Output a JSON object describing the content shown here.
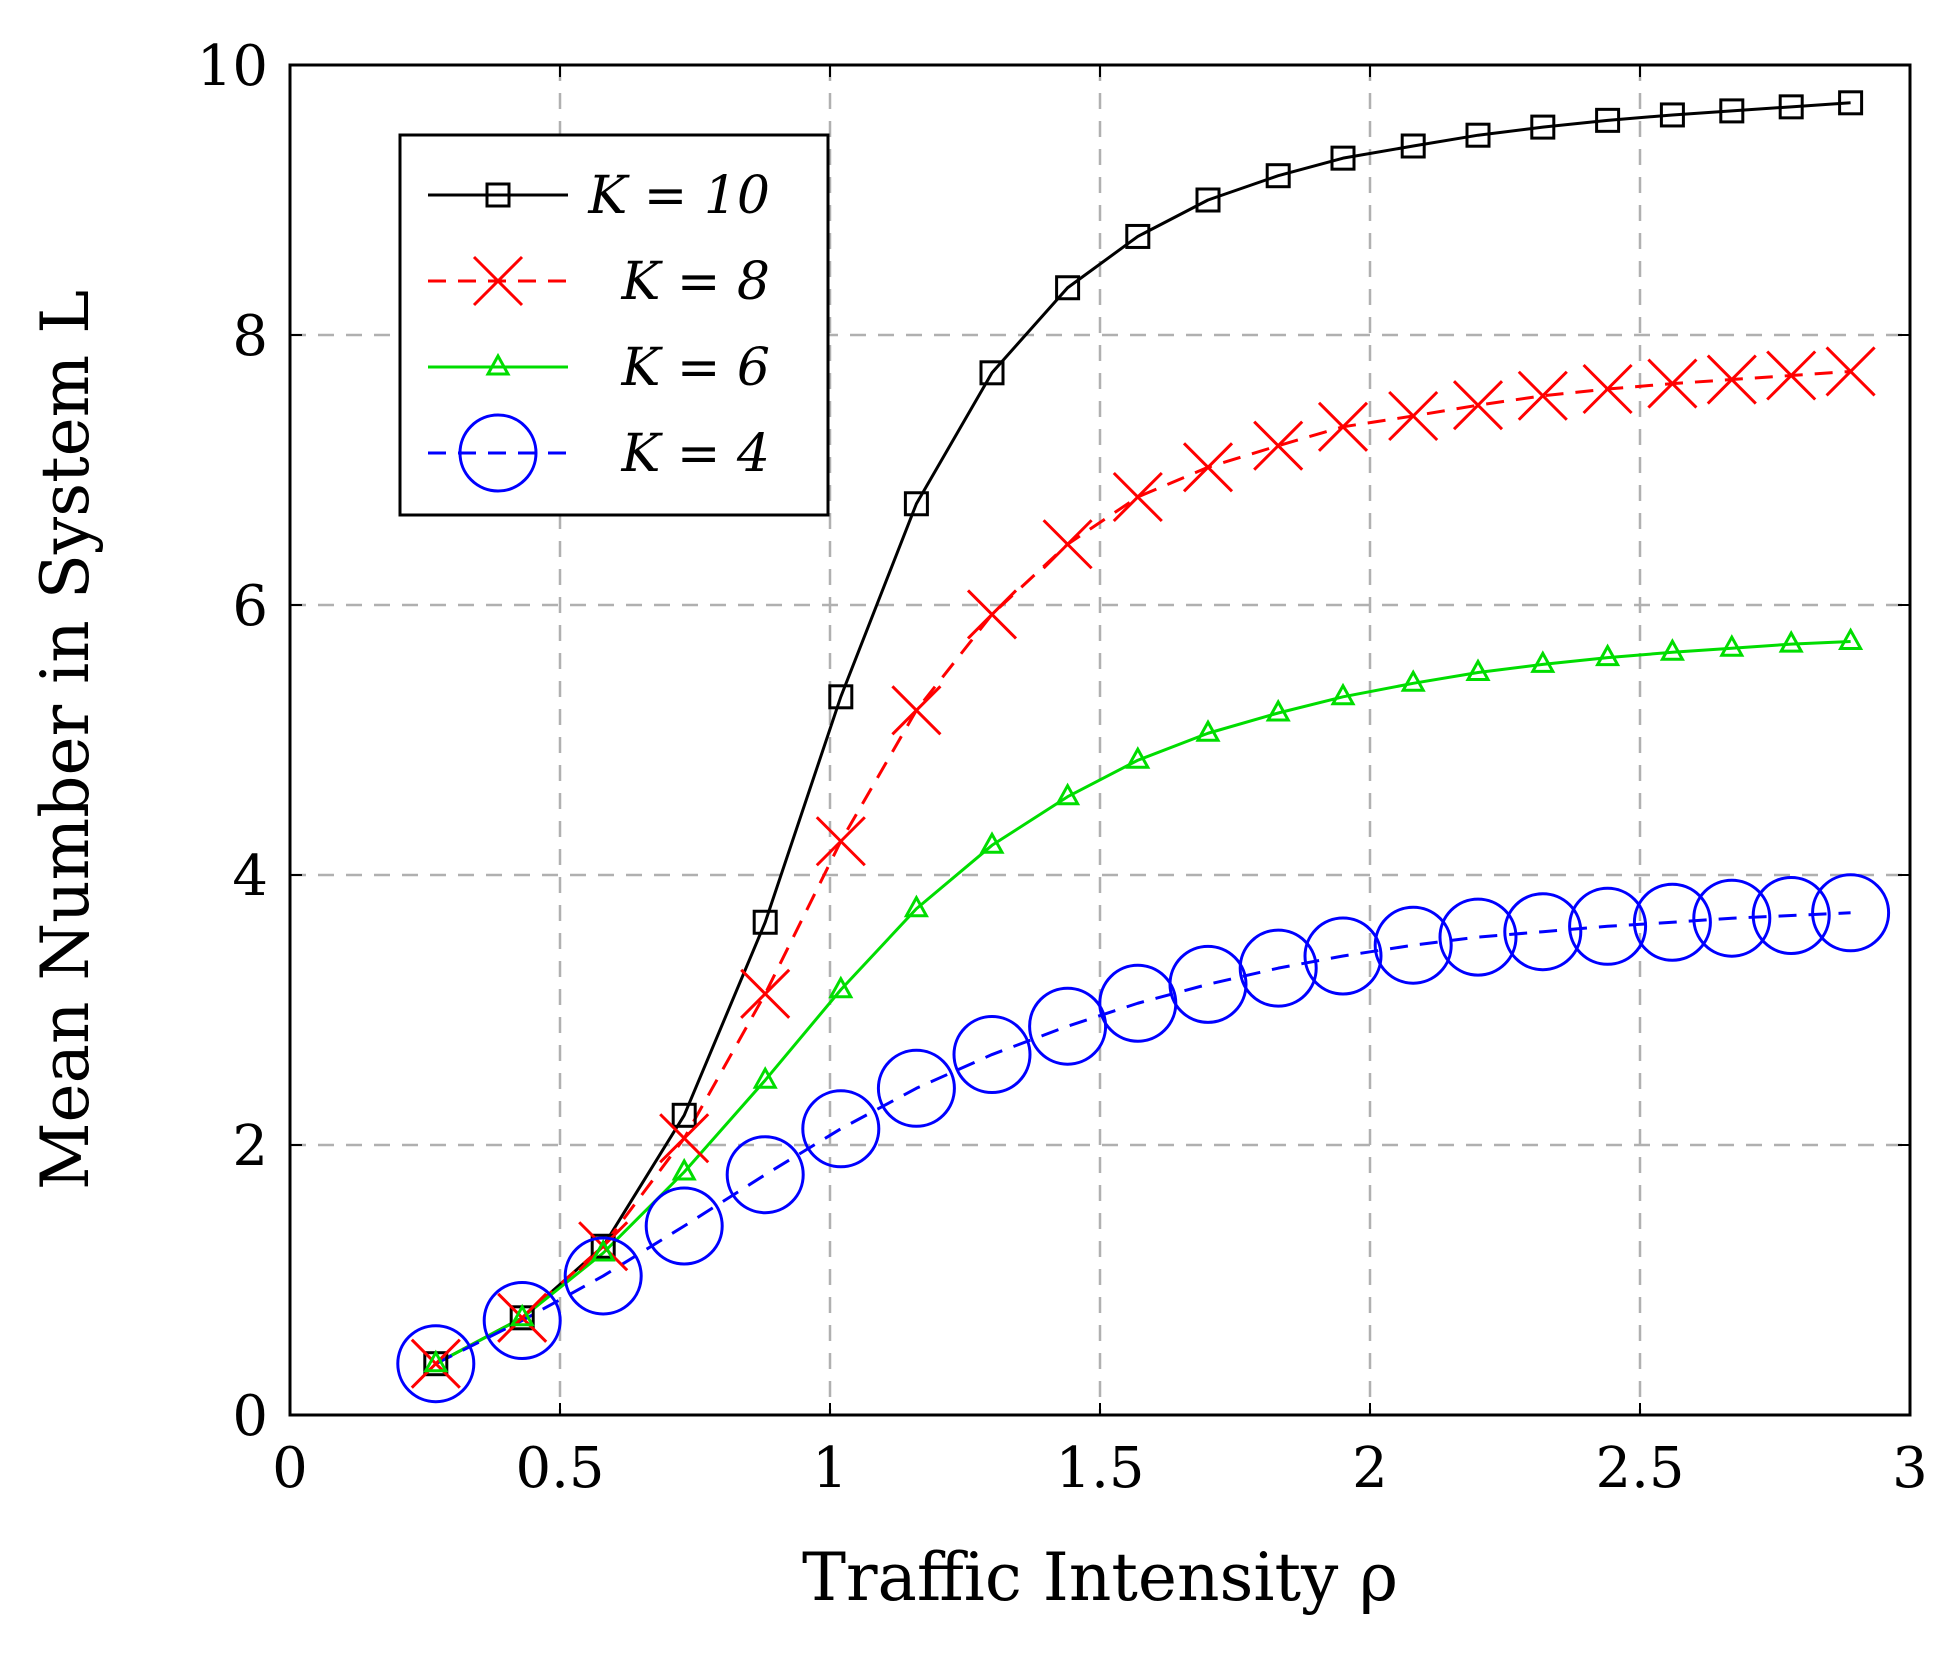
{
  "chart_data": {
    "type": "line",
    "title": "",
    "xlabel": "Traffic Intensity ρ",
    "ylabel": "Mean Number in System L",
    "xlim": [
      0,
      3
    ],
    "ylim": [
      0,
      10
    ],
    "xticks": [
      0,
      0.5,
      1,
      1.5,
      2,
      2.5,
      3
    ],
    "xtick_labels": [
      "0",
      "0.5",
      "1",
      "1.5",
      "2",
      "2.5",
      "3"
    ],
    "yticks": [
      0,
      2,
      4,
      6,
      8,
      10
    ],
    "ytick_labels": [
      "0",
      "2",
      "4",
      "6",
      "8",
      "10"
    ],
    "grid": true,
    "legend_position": "top-left",
    "x": [
      0.27,
      0.43,
      0.58,
      0.73,
      0.88,
      1.02,
      1.16,
      1.3,
      1.44,
      1.57,
      1.7,
      1.83,
      1.95,
      2.08,
      2.2,
      2.32,
      2.44,
      2.56,
      2.67,
      2.78,
      2.89
    ],
    "series": [
      {
        "name": "K = 10",
        "color": "#000000",
        "marker": "square",
        "dash": "solid",
        "values": [
          0.38,
          0.72,
          1.25,
          2.22,
          3.65,
          5.32,
          6.75,
          7.72,
          8.35,
          8.73,
          9.0,
          9.18,
          9.31,
          9.4,
          9.48,
          9.54,
          9.59,
          9.63,
          9.66,
          9.69,
          9.72
        ]
      },
      {
        "name": "K = 8",
        "color": "#ff0000",
        "marker": "cross",
        "dash": "dashed",
        "values": [
          0.38,
          0.72,
          1.25,
          2.05,
          3.12,
          4.25,
          5.22,
          5.93,
          6.45,
          6.8,
          7.02,
          7.18,
          7.32,
          7.4,
          7.48,
          7.55,
          7.6,
          7.64,
          7.67,
          7.7,
          7.73
        ]
      },
      {
        "name": "K = 6",
        "color": "#00dd00",
        "marker": "triangle",
        "dash": "solid",
        "values": [
          0.38,
          0.72,
          1.2,
          1.8,
          2.48,
          3.15,
          3.75,
          4.22,
          4.58,
          4.85,
          5.05,
          5.2,
          5.32,
          5.42,
          5.5,
          5.56,
          5.61,
          5.65,
          5.68,
          5.71,
          5.73
        ]
      },
      {
        "name": "K = 4",
        "color": "#0000ff",
        "marker": "circle",
        "dash": "dashed",
        "values": [
          0.38,
          0.7,
          1.03,
          1.4,
          1.78,
          2.12,
          2.42,
          2.67,
          2.88,
          3.05,
          3.19,
          3.31,
          3.4,
          3.48,
          3.54,
          3.58,
          3.62,
          3.65,
          3.68,
          3.7,
          3.72
        ]
      }
    ]
  }
}
